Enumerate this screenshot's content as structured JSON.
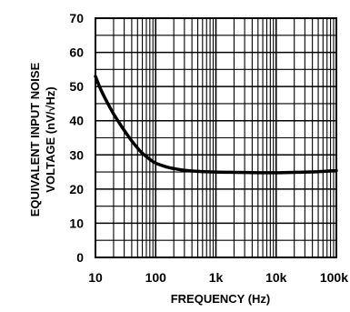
{
  "chart_data": {
    "type": "line",
    "title": "",
    "xlabel": "FREQUENCY (Hz)",
    "ylabel_line1": "EQUIVALENT INPUT NOISE",
    "ylabel_line2": "VOLTAGE (nV/√Hz)",
    "x_scale": "log",
    "xlim": [
      10,
      100000
    ],
    "ylim": [
      0,
      70
    ],
    "grid": true,
    "x_ticks": [
      {
        "value": 10,
        "label": "10"
      },
      {
        "value": 100,
        "label": "100"
      },
      {
        "value": 1000,
        "label": "1k"
      },
      {
        "value": 10000,
        "label": "10k"
      },
      {
        "value": 100000,
        "label": "100k"
      }
    ],
    "y_ticks": [
      {
        "value": 0,
        "label": "0"
      },
      {
        "value": 10,
        "label": "10"
      },
      {
        "value": 20,
        "label": "20"
      },
      {
        "value": 30,
        "label": "30"
      },
      {
        "value": 40,
        "label": "40"
      },
      {
        "value": 50,
        "label": "50"
      },
      {
        "value": 60,
        "label": "60"
      },
      {
        "value": 70,
        "label": "70"
      }
    ],
    "series": [
      {
        "color": "#000000",
        "x": [
          10,
          12,
          15,
          20,
          25,
          30,
          40,
          50,
          60,
          80,
          100,
          150,
          200,
          300,
          500,
          1000,
          2000,
          5000,
          10000,
          20000,
          50000,
          100000
        ],
        "y": [
          53,
          49.5,
          46,
          42,
          39.3,
          37.2,
          34.1,
          32,
          30.5,
          28.7,
          27.6,
          26.5,
          26,
          25.5,
          25.2,
          25.0,
          24.9,
          24.8,
          24.8,
          24.9,
          25.1,
          25.4
        ]
      }
    ]
  }
}
